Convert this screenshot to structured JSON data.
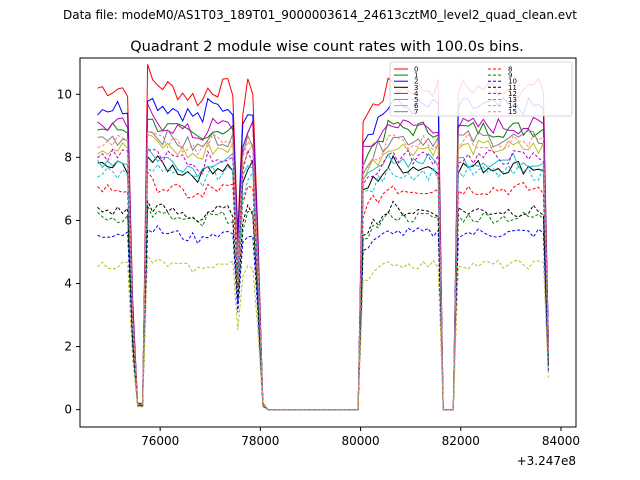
{
  "figure": {
    "supertitle": "Data file: modeM0/AS1T03_189T01_9000003614_24613cztM0_level2_quad_clean.evt"
  },
  "chart_data": {
    "type": "line",
    "title": "Quadrant 2 module wise count rates with 100.0s bins.",
    "xlabel": "",
    "ylabel": "",
    "x_offset_label": "+3.247e8",
    "xlim": [
      74400,
      84300
    ],
    "ylim": [
      -0.55,
      11.15
    ],
    "xticks": [
      76000,
      78000,
      80000,
      82000,
      84000
    ],
    "xtick_labels": [
      "76000",
      "78000",
      "80000",
      "82000",
      "84000"
    ],
    "yticks": [
      0,
      2,
      4,
      6,
      8,
      10
    ],
    "ytick_labels": [
      "0",
      "2",
      "4",
      "6",
      "8",
      "10"
    ],
    "grid": false,
    "legend_position": "top-right",
    "shape": {
      "segments": [
        {
          "start": 74750,
          "end": 75350,
          "type": "flat"
        },
        {
          "start": 75450,
          "end": 75650,
          "type": "dip"
        },
        {
          "start": 75850,
          "end": 76850,
          "type": "decay_mid"
        },
        {
          "start": 76950,
          "end": 77450,
          "type": "flat"
        },
        {
          "start": 77550,
          "end": 77650,
          "type": "dip_small"
        },
        {
          "start": 77750,
          "end": 77850,
          "type": "flat"
        },
        {
          "start": 77950,
          "end": 78050,
          "type": "edge"
        },
        {
          "start": 78100,
          "end": 79950,
          "type": "gap"
        },
        {
          "start": 80050,
          "end": 80650,
          "type": "rise"
        },
        {
          "start": 80750,
          "end": 81550,
          "type": "flat"
        },
        {
          "start": 81650,
          "end": 81850,
          "type": "gap_short"
        },
        {
          "start": 81950,
          "end": 83650,
          "type": "flat"
        },
        {
          "start": 83750,
          "end": 83750,
          "type": "end_drop"
        }
      ],
      "dip_factor": 0.06,
      "noise_seed": 7,
      "noise_amplitude": 0.25
    },
    "series": [
      {
        "name": "0",
        "base": 10.2,
        "color": "#ff0000",
        "dashed": false
      },
      {
        "name": "1",
        "base": 8.9,
        "color": "#008000",
        "dashed": false
      },
      {
        "name": "2",
        "base": 9.6,
        "color": "#0000ff",
        "dashed": false
      },
      {
        "name": "3",
        "base": 7.7,
        "color": "#000000",
        "dashed": false
      },
      {
        "name": "4",
        "base": 9.0,
        "color": "#bf00bf",
        "dashed": false
      },
      {
        "name": "5",
        "base": 7.9,
        "color": "#17becf",
        "dashed": false
      },
      {
        "name": "6",
        "base": 8.3,
        "color": "#bcbd22",
        "dashed": false
      },
      {
        "name": "7",
        "base": 8.6,
        "color": "#7f7f7f",
        "dashed": false
      },
      {
        "name": "8",
        "base": 7.0,
        "color": "#ff0000",
        "dashed": true
      },
      {
        "name": "9",
        "base": 6.1,
        "color": "#008000",
        "dashed": true
      },
      {
        "name": "10",
        "base": 5.6,
        "color": "#0000ff",
        "dashed": true
      },
      {
        "name": "11",
        "base": 6.3,
        "color": "#000000",
        "dashed": true
      },
      {
        "name": "12",
        "base": 8.0,
        "color": "#bf00bf",
        "dashed": true
      },
      {
        "name": "13",
        "base": 7.5,
        "color": "#17becf",
        "dashed": true
      },
      {
        "name": "14",
        "base": 4.6,
        "color": "#bcbd22",
        "dashed": true
      },
      {
        "name": "15",
        "base": 8.5,
        "color": "#ff7f7f",
        "dashed": true
      }
    ]
  }
}
